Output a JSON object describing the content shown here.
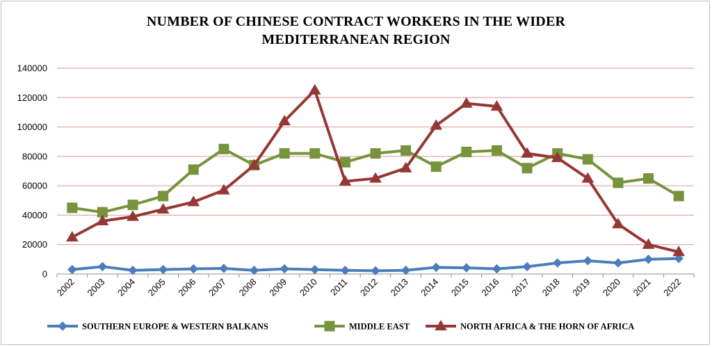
{
  "chart_data": {
    "type": "line",
    "title": "NUMBER OF CHINESE CONTRACT WORKERS IN THE WIDER MEDITERRANEAN REGION",
    "title_lines": [
      "NUMBER OF CHINESE CONTRACT WORKERS IN THE WIDER",
      "MEDITERRANEAN REGION"
    ],
    "xlabel": "",
    "ylabel": "",
    "x": [
      "2002",
      "2003",
      "2004",
      "2005",
      "2006",
      "2007",
      "2008",
      "2009",
      "2010",
      "2011",
      "2012",
      "2013",
      "2014",
      "2015",
      "2016",
      "2017",
      "2018",
      "2019",
      "2020",
      "2021",
      "2022"
    ],
    "ylim": [
      0,
      140000
    ],
    "yticks": [
      "0",
      "20000",
      "40000",
      "60000",
      "80000",
      "100000",
      "120000",
      "140000"
    ],
    "grid": true,
    "legend_position": "bottom",
    "series": [
      {
        "name": "SOUTHERN EUROPE & WESTERN BALKANS",
        "color": "#4a7ebb",
        "marker": "diamond",
        "values": [
          3000,
          5000,
          2500,
          3000,
          3500,
          3800,
          2500,
          3500,
          3000,
          2500,
          2200,
          2500,
          4500,
          4200,
          3500,
          5000,
          7500,
          9000,
          7500,
          10000,
          10500
        ]
      },
      {
        "name": "MIDDLE EAST",
        "color": "#77933c",
        "marker": "square",
        "values": [
          45000,
          42000,
          47000,
          53000,
          71000,
          85000,
          74000,
          82000,
          82000,
          76000,
          82000,
          84000,
          73000,
          83000,
          84000,
          72000,
          82000,
          78000,
          62000,
          65000,
          53000
        ]
      },
      {
        "name": "NORTH AFRICA & THE HORN OF AFRICA",
        "color": "#953735",
        "marker": "triangle",
        "values": [
          25000,
          36000,
          39000,
          44000,
          49000,
          57000,
          74000,
          104000,
          125000,
          63000,
          65000,
          72000,
          101000,
          116000,
          114000,
          82000,
          79000,
          65000,
          34000,
          20000,
          15000
        ]
      }
    ]
  }
}
